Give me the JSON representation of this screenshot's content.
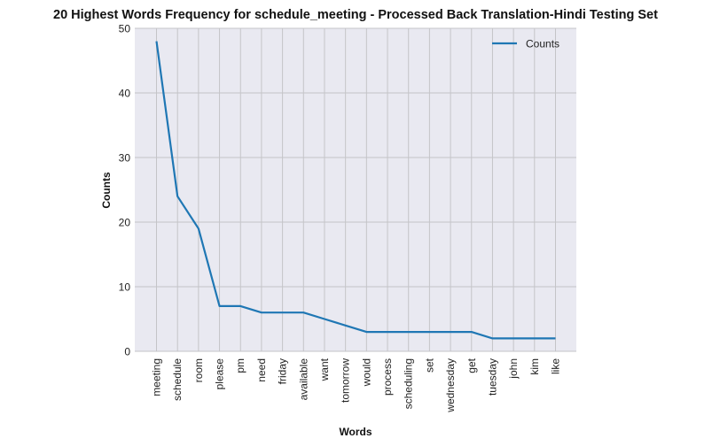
{
  "chart_data": {
    "type": "line",
    "title": "20 Highest Words Frequency for schedule_meeting - Processed Back Translation-Hindi Testing Set",
    "xlabel": "Words",
    "ylabel": "Counts",
    "categories": [
      "meeting",
      "schedule",
      "room",
      "please",
      "pm",
      "need",
      "friday",
      "available",
      "want",
      "tomorrow",
      "would",
      "process",
      "scheduling",
      "set",
      "wednesday",
      "get",
      "tuesday",
      "john",
      "kim",
      "like"
    ],
    "series": [
      {
        "name": "Counts",
        "values": [
          48,
          24,
          19,
          7,
          7,
          6,
          6,
          6,
          5,
          4,
          3,
          3,
          3,
          3,
          3,
          3,
          2,
          2,
          2,
          2
        ]
      }
    ],
    "ylim": [
      0,
      50
    ],
    "yticks": [
      0,
      10,
      20,
      30,
      40,
      50
    ],
    "grid": true,
    "legend_position": "top-right",
    "colors": {
      "line": "#1f77b4",
      "plot_background": "#e9e9f1",
      "grid": "#c4c4c8"
    }
  }
}
